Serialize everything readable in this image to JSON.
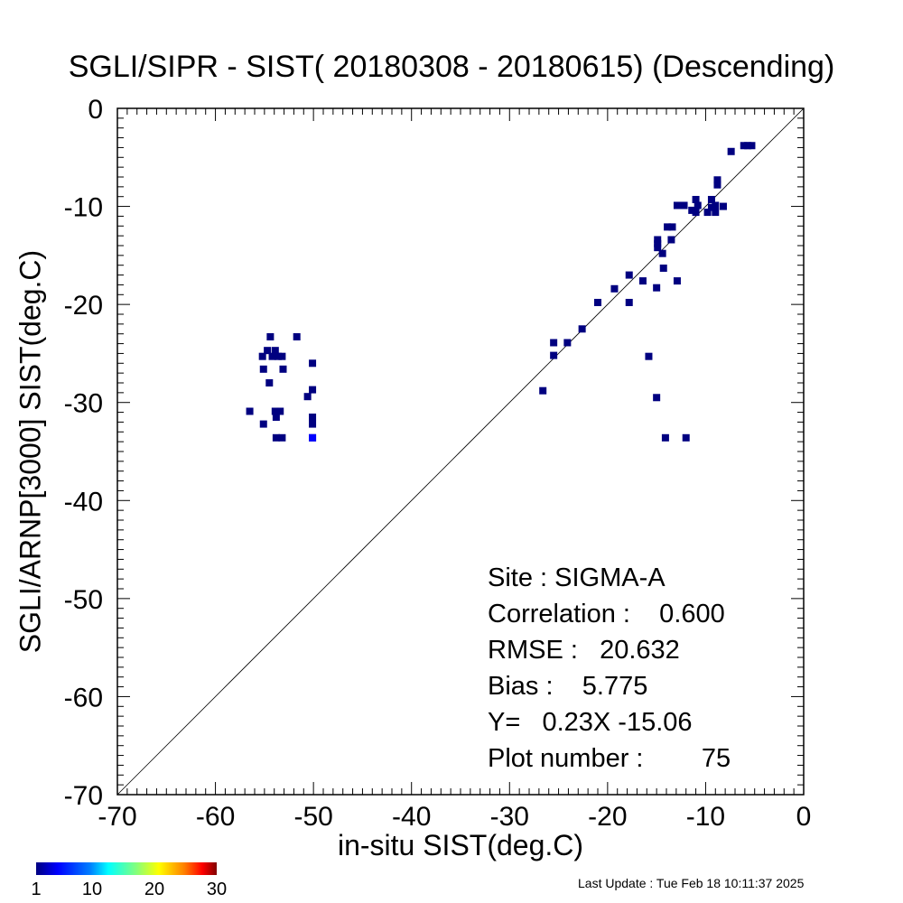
{
  "title": "SGLI/SIPR - SIST( 20180308 - 20180615) (Descending)",
  "xlabel": "in-situ SIST(deg.C)",
  "ylabel": "SGLI/ARNP[3000]    SIST(deg.C)",
  "stats": {
    "site": "Site : SIGMA-A",
    "correlation": "Correlation :    0.600",
    "rmse": "RMSE :   20.632",
    "bias": "Bias :    5.775",
    "equation": "Y=   0.23X -15.06",
    "plot_number": "Plot number :        75"
  },
  "last_update": "Last Update : Tue Feb 18 10:11:37 2025",
  "colorbar": {
    "ticks": [
      "1",
      "10",
      "20",
      "30"
    ],
    "min": 1,
    "max": 30
  },
  "chart_data": {
    "type": "scatter",
    "xlim": [
      -70,
      0
    ],
    "ylim": [
      -70,
      0
    ],
    "x_ticks": [
      -70,
      -60,
      -50,
      -40,
      -30,
      -20,
      -10,
      0
    ],
    "y_ticks": [
      -70,
      -60,
      -50,
      -40,
      -30,
      -20,
      -10,
      0
    ],
    "reference_line": "y = x",
    "point_color": "#000080",
    "highlight_color": "#0000ff",
    "points": [
      [
        -54.4,
        -23.3
      ],
      [
        -51.7,
        -23.3
      ],
      [
        -54.7,
        -24.7
      ],
      [
        -53.9,
        -24.7
      ],
      [
        -55.2,
        -25.3
      ],
      [
        -54.2,
        -25.3
      ],
      [
        -53.6,
        -25.3
      ],
      [
        -53.2,
        -25.3
      ],
      [
        -50.1,
        -26.0
      ],
      [
        -55.1,
        -26.6
      ],
      [
        -53.1,
        -26.6
      ],
      [
        -54.5,
        -28.0
      ],
      [
        -50.1,
        -28.7
      ],
      [
        -50.6,
        -29.4
      ],
      [
        -53.9,
        -30.9
      ],
      [
        -53.4,
        -30.9
      ],
      [
        -56.5,
        -30.9
      ],
      [
        -53.8,
        -31.5
      ],
      [
        -50.1,
        -31.5
      ],
      [
        -55.1,
        -32.2
      ],
      [
        -50.1,
        -32.2
      ],
      [
        -53.8,
        -33.6
      ],
      [
        -53.2,
        -33.6
      ],
      [
        -50.1,
        -33.6
      ],
      [
        -26.6,
        -28.8
      ],
      [
        -25.5,
        -23.9
      ],
      [
        -25.5,
        -25.2
      ],
      [
        -24.1,
        -23.9
      ],
      [
        -22.6,
        -22.5
      ],
      [
        -21.0,
        -19.8
      ],
      [
        -19.3,
        -18.4
      ],
      [
        -17.8,
        -17.0
      ],
      [
        -17.8,
        -19.8
      ],
      [
        -16.4,
        -17.6
      ],
      [
        -15.8,
        -25.3
      ],
      [
        -15.0,
        -18.3
      ],
      [
        -15.0,
        -29.5
      ],
      [
        -14.9,
        -13.4
      ],
      [
        -14.9,
        -13.8
      ],
      [
        -14.9,
        -14.2
      ],
      [
        -14.4,
        -14.8
      ],
      [
        -14.3,
        -16.3
      ],
      [
        -14.1,
        -33.6
      ],
      [
        -13.9,
        -12.1
      ],
      [
        -13.4,
        -12.1
      ],
      [
        -13.5,
        -13.4
      ],
      [
        -12.9,
        -17.6
      ],
      [
        -12.0,
        -33.6
      ],
      [
        -12.9,
        -9.9
      ],
      [
        -12.2,
        -9.9
      ],
      [
        -11.4,
        -10.4
      ],
      [
        -11.0,
        -9.3
      ],
      [
        -11.0,
        -10.6
      ],
      [
        -10.8,
        -9.9
      ],
      [
        -9.8,
        -10.6
      ],
      [
        -9.4,
        -10.1
      ],
      [
        -9.4,
        -9.3
      ],
      [
        -9.0,
        -10.6
      ],
      [
        -9.0,
        -9.9
      ],
      [
        -8.8,
        -7.3
      ],
      [
        -8.8,
        -7.8
      ],
      [
        -8.2,
        -10.0
      ],
      [
        -7.4,
        -4.4
      ],
      [
        -6.1,
        -3.8
      ],
      [
        -5.7,
        -3.8
      ],
      [
        -5.3,
        -3.8
      ]
    ],
    "highlight_points": [
      [
        -50.1,
        -33.6
      ]
    ]
  }
}
